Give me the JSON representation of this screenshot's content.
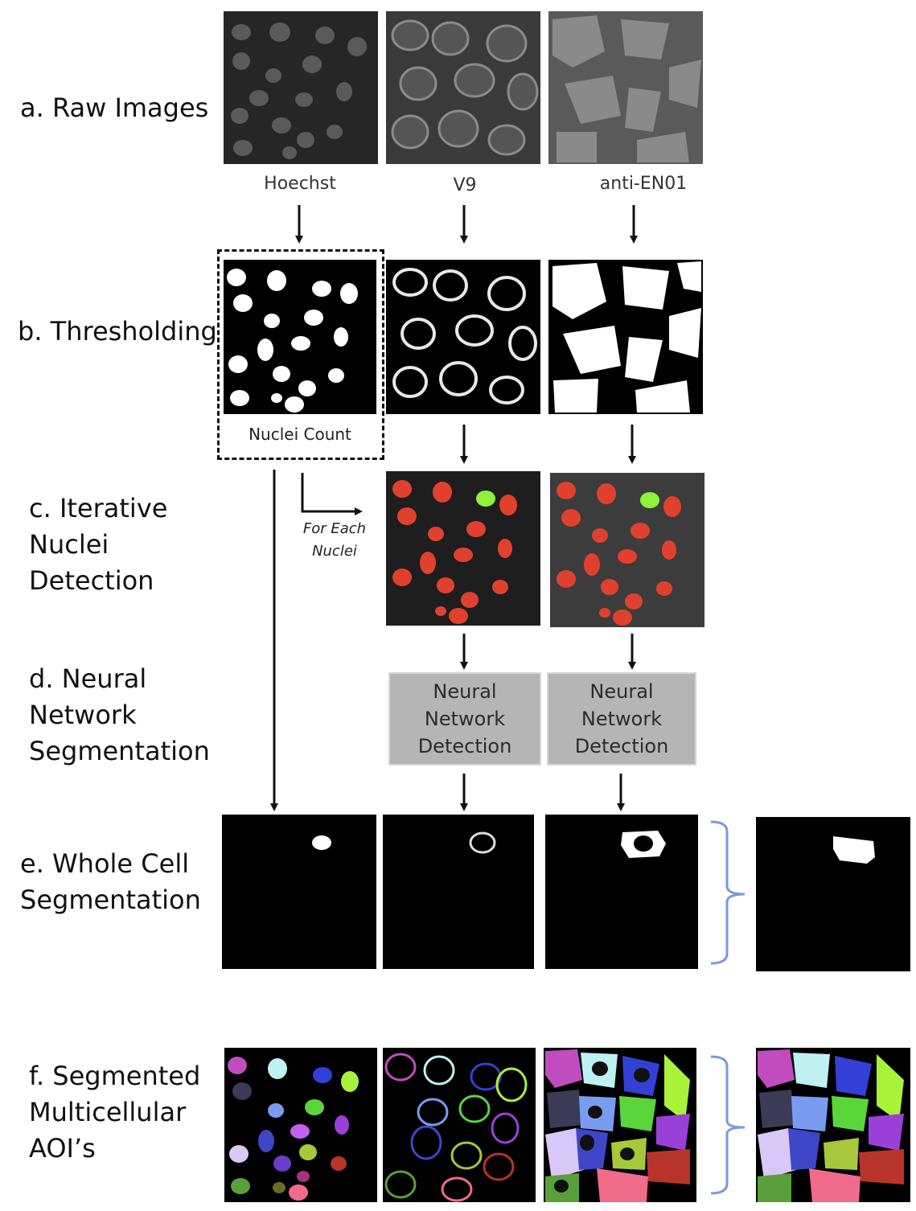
{
  "stages": {
    "a": [
      "a. Raw Images"
    ],
    "b": [
      "b. Thresholding"
    ],
    "c": [
      "c. Iterative",
      "Nuclei",
      "Detection"
    ],
    "d": [
      "d. Neural",
      "Network",
      "Segmentation"
    ],
    "e": [
      "e. Whole Cell",
      "Segmentation"
    ],
    "f": [
      "f. Segmented",
      "Multicellular",
      "AOI’s"
    ]
  },
  "channels": [
    "Hoechst",
    "V9",
    "anti-EN01"
  ],
  "nuclei_count_label": "Nuclei Count",
  "for_each": [
    "For Each",
    "Nuclei"
  ],
  "neural_box": [
    "Neural",
    "Network",
    "Detection"
  ],
  "colors": {
    "nucleus_marker": "#e0412f",
    "selected_nucleus": "#8ef23a",
    "neural_box": "#b5b5b5",
    "bracket": "#7a9bd6",
    "panel_bg": "#000000"
  }
}
